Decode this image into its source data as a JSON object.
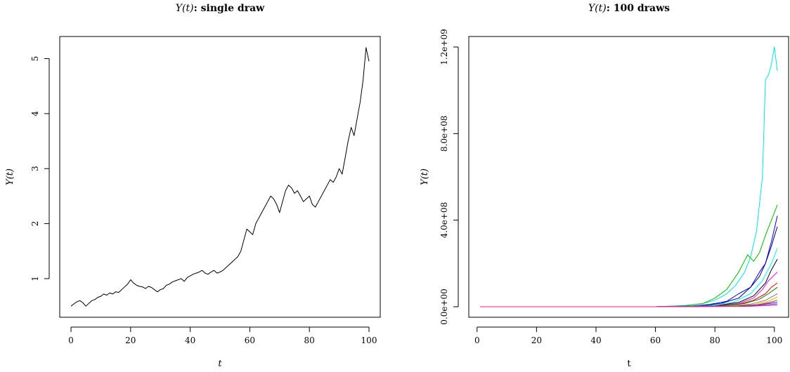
{
  "chart_data": [
    {
      "type": "line",
      "title": {
        "math": "Y(t)",
        "rest": ": single draw"
      },
      "xlabel": "t",
      "ylabel": "Y(t)",
      "xlim": [
        0,
        100
      ],
      "ylim": [
        0.4,
        5.3
      ],
      "xticks": [
        0,
        20,
        40,
        60,
        80,
        100
      ],
      "yticks": [
        1,
        2,
        3,
        4,
        5
      ],
      "ytick_labels": [
        "1",
        "2",
        "3",
        "4",
        "5"
      ],
      "series": [
        {
          "color": "#000000",
          "x": [
            0,
            1,
            2,
            3,
            4,
            5,
            6,
            7,
            8,
            9,
            10,
            11,
            12,
            13,
            14,
            15,
            16,
            17,
            18,
            19,
            20,
            21,
            22,
            23,
            24,
            25,
            26,
            27,
            28,
            29,
            30,
            31,
            32,
            33,
            34,
            35,
            36,
            37,
            38,
            39,
            40,
            41,
            42,
            43,
            44,
            45,
            46,
            47,
            48,
            49,
            50,
            51,
            52,
            53,
            54,
            55,
            56,
            57,
            58,
            59,
            60,
            61,
            62,
            63,
            64,
            65,
            66,
            67,
            68,
            69,
            70,
            71,
            72,
            73,
            74,
            75,
            76,
            77,
            78,
            79,
            80,
            81,
            82,
            83,
            84,
            85,
            86,
            87,
            88,
            89,
            90,
            91,
            92,
            93,
            94,
            95,
            96,
            97,
            98,
            99,
            100
          ],
          "y": [
            0.5,
            0.54,
            0.58,
            0.6,
            0.56,
            0.5,
            0.55,
            0.6,
            0.62,
            0.66,
            0.68,
            0.72,
            0.7,
            0.74,
            0.72,
            0.76,
            0.75,
            0.8,
            0.85,
            0.9,
            0.98,
            0.92,
            0.88,
            0.86,
            0.85,
            0.82,
            0.86,
            0.84,
            0.8,
            0.76,
            0.8,
            0.82,
            0.88,
            0.9,
            0.94,
            0.96,
            0.98,
            1.0,
            0.95,
            1.02,
            1.05,
            1.08,
            1.1,
            1.12,
            1.15,
            1.1,
            1.08,
            1.12,
            1.15,
            1.1,
            1.12,
            1.15,
            1.2,
            1.25,
            1.3,
            1.35,
            1.4,
            1.5,
            1.7,
            1.9,
            1.85,
            1.8,
            2.0,
            2.1,
            2.2,
            2.3,
            2.4,
            2.5,
            2.45,
            2.35,
            2.2,
            2.4,
            2.6,
            2.7,
            2.65,
            2.55,
            2.6,
            2.5,
            2.4,
            2.45,
            2.5,
            2.35,
            2.3,
            2.4,
            2.5,
            2.6,
            2.7,
            2.8,
            2.75,
            2.85,
            3.0,
            2.9,
            3.2,
            3.5,
            3.75,
            3.6,
            3.9,
            4.2,
            4.6,
            5.2,
            4.95
          ]
        }
      ]
    },
    {
      "type": "line",
      "title": {
        "math": "Y(t)",
        "rest": ": 100 draws"
      },
      "xlabel": "t",
      "ylabel": "Y(t)",
      "xlim": [
        1,
        101
      ],
      "ylim": [
        0,
        1200000000
      ],
      "xticks": [
        0,
        20,
        40,
        60,
        80,
        100
      ],
      "yticks": [
        0,
        400000000,
        800000000,
        1200000000
      ],
      "ytick_labels": [
        "0.0e+00",
        "4.0e+08",
        "8.0e+08",
        "1.2e+09"
      ],
      "series": [
        {
          "color": "#00e5e5",
          "x": [
            1,
            60,
            68,
            72,
            76,
            80,
            84,
            87,
            90,
            92,
            94,
            96,
            97,
            98,
            99,
            100,
            101
          ],
          "y": [
            0,
            0,
            4000000,
            8000000,
            15000000,
            30000000,
            60000000,
            100000000,
            160000000,
            230000000,
            350000000,
            600000000,
            1050000000,
            1070000000,
            1120000000,
            1200000000,
            1090000000
          ]
        },
        {
          "color": "#00c000",
          "x": [
            1,
            60,
            70,
            76,
            80,
            84,
            88,
            91,
            93,
            95,
            97,
            99,
            101
          ],
          "y": [
            0,
            0,
            5000000,
            15000000,
            40000000,
            80000000,
            160000000,
            240000000,
            210000000,
            250000000,
            330000000,
            400000000,
            470000000
          ]
        },
        {
          "color": "#0000ff",
          "x": [
            1,
            60,
            72,
            78,
            84,
            88,
            92,
            95,
            97,
            99,
            100,
            101
          ],
          "y": [
            0,
            0,
            3000000,
            10000000,
            25000000,
            60000000,
            90000000,
            160000000,
            200000000,
            300000000,
            360000000,
            420000000
          ]
        },
        {
          "color": "#000080",
          "x": [
            1,
            60,
            75,
            82,
            88,
            92,
            95,
            97,
            99,
            101
          ],
          "y": [
            0,
            0,
            4000000,
            15000000,
            40000000,
            90000000,
            140000000,
            200000000,
            280000000,
            370000000
          ]
        },
        {
          "color": "#00ffff",
          "x": [
            1,
            60,
            78,
            86,
            92,
            96,
            99,
            101
          ],
          "y": [
            0,
            0,
            5000000,
            20000000,
            60000000,
            120000000,
            200000000,
            270000000
          ]
        },
        {
          "color": "#000000",
          "x": [
            1,
            60,
            80,
            88,
            93,
            97,
            99,
            101
          ],
          "y": [
            0,
            0,
            4000000,
            20000000,
            50000000,
            110000000,
            170000000,
            220000000
          ]
        },
        {
          "color": "#ff00ff",
          "x": [
            1,
            60,
            80,
            88,
            93,
            96,
            98,
            101
          ],
          "y": [
            0,
            0,
            3000000,
            15000000,
            40000000,
            80000000,
            120000000,
            160000000
          ]
        },
        {
          "color": "#ff0000",
          "x": [
            1,
            60,
            80,
            88,
            93,
            97,
            99,
            101
          ],
          "y": [
            0,
            0,
            3000000,
            12000000,
            30000000,
            60000000,
            90000000,
            110000000
          ]
        },
        {
          "color": "#008000",
          "x": [
            1,
            60,
            82,
            90,
            95,
            98,
            101
          ],
          "y": [
            0,
            0,
            3000000,
            15000000,
            35000000,
            60000000,
            90000000
          ]
        },
        {
          "color": "#808080",
          "x": [
            1,
            60,
            84,
            92,
            97,
            101
          ],
          "y": [
            0,
            0,
            3000000,
            12000000,
            30000000,
            60000000
          ]
        },
        {
          "color": "#ffa500",
          "x": [
            1,
            60,
            85,
            93,
            98,
            101
          ],
          "y": [
            0,
            0,
            2000000,
            10000000,
            25000000,
            45000000
          ]
        },
        {
          "color": "#8b4513",
          "x": [
            1,
            60,
            86,
            94,
            98,
            101
          ],
          "y": [
            0,
            0,
            2000000,
            8000000,
            18000000,
            30000000
          ]
        },
        {
          "color": "#9400d3",
          "x": [
            1,
            60,
            88,
            95,
            101
          ],
          "y": [
            0,
            0,
            2000000,
            8000000,
            20000000
          ]
        },
        {
          "color": "#1e90ff",
          "x": [
            1,
            60,
            90,
            96,
            101
          ],
          "y": [
            0,
            0,
            2000000,
            6000000,
            14000000
          ]
        },
        {
          "color": "#ff1493",
          "x": [
            1,
            60,
            92,
            101
          ],
          "y": [
            0,
            0,
            2000000,
            8000000
          ]
        }
      ]
    }
  ]
}
